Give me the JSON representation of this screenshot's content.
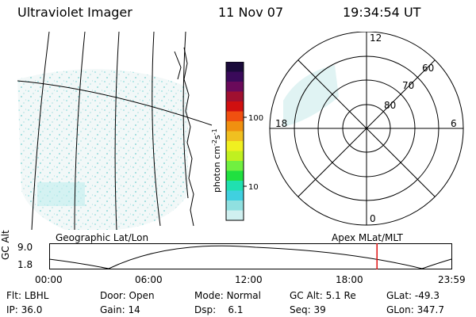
{
  "header": {
    "instrument": "Ultraviolet Imager",
    "date": "11 Nov 07",
    "time": "19:34:54 UT"
  },
  "map_label": "Geographic Lat/Lon",
  "polar": {
    "label": "Apex MLat/MLT",
    "lat_labels": [
      "60",
      "70",
      "80"
    ],
    "mlt_labels": {
      "top": "12",
      "bottom": "0",
      "left": "18",
      "right": "6"
    }
  },
  "colorbar": {
    "unit": "photon cm",
    "exp1": "-2",
    "unit_s": "s",
    "exp2": "-1",
    "tick_labels": [
      "100",
      "10"
    ],
    "colors": [
      "#1a0a3a",
      "#3a0a5a",
      "#6a0a5a",
      "#a01030",
      "#d01010",
      "#f05010",
      "#f09010",
      "#f0c020",
      "#f0f020",
      "#c0f020",
      "#70f040",
      "#20e040",
      "#20e0b0",
      "#40d0e0",
      "#90e0e0",
      "#d0f0f0"
    ]
  },
  "orbit": {
    "ylabel": "GC Alt",
    "ticks": [
      "9.0",
      "1.8"
    ],
    "time_labels": [
      "00:00",
      "06:00",
      "12:00",
      "18:00",
      "23:59"
    ],
    "current_time_fraction": 0.815
  },
  "status": {
    "row1": [
      {
        "label": "Flt:",
        "value": "LBHL"
      },
      {
        "label": "Door:",
        "value": "Open"
      },
      {
        "label": "Mode:",
        "value": "Normal"
      },
      {
        "label": "GC Alt:",
        "value": "5.1 Re"
      },
      {
        "label": "GLat:",
        "value": "-49.3"
      }
    ],
    "row2": [
      {
        "label": "IP:",
        "value": "36.0"
      },
      {
        "label": "Gain:",
        "value": "14"
      },
      {
        "label": "Dsp:",
        "value": "6.1"
      },
      {
        "label": "Seq:",
        "value": "39"
      },
      {
        "label": "GLon:",
        "value": "347.7"
      }
    ]
  }
}
